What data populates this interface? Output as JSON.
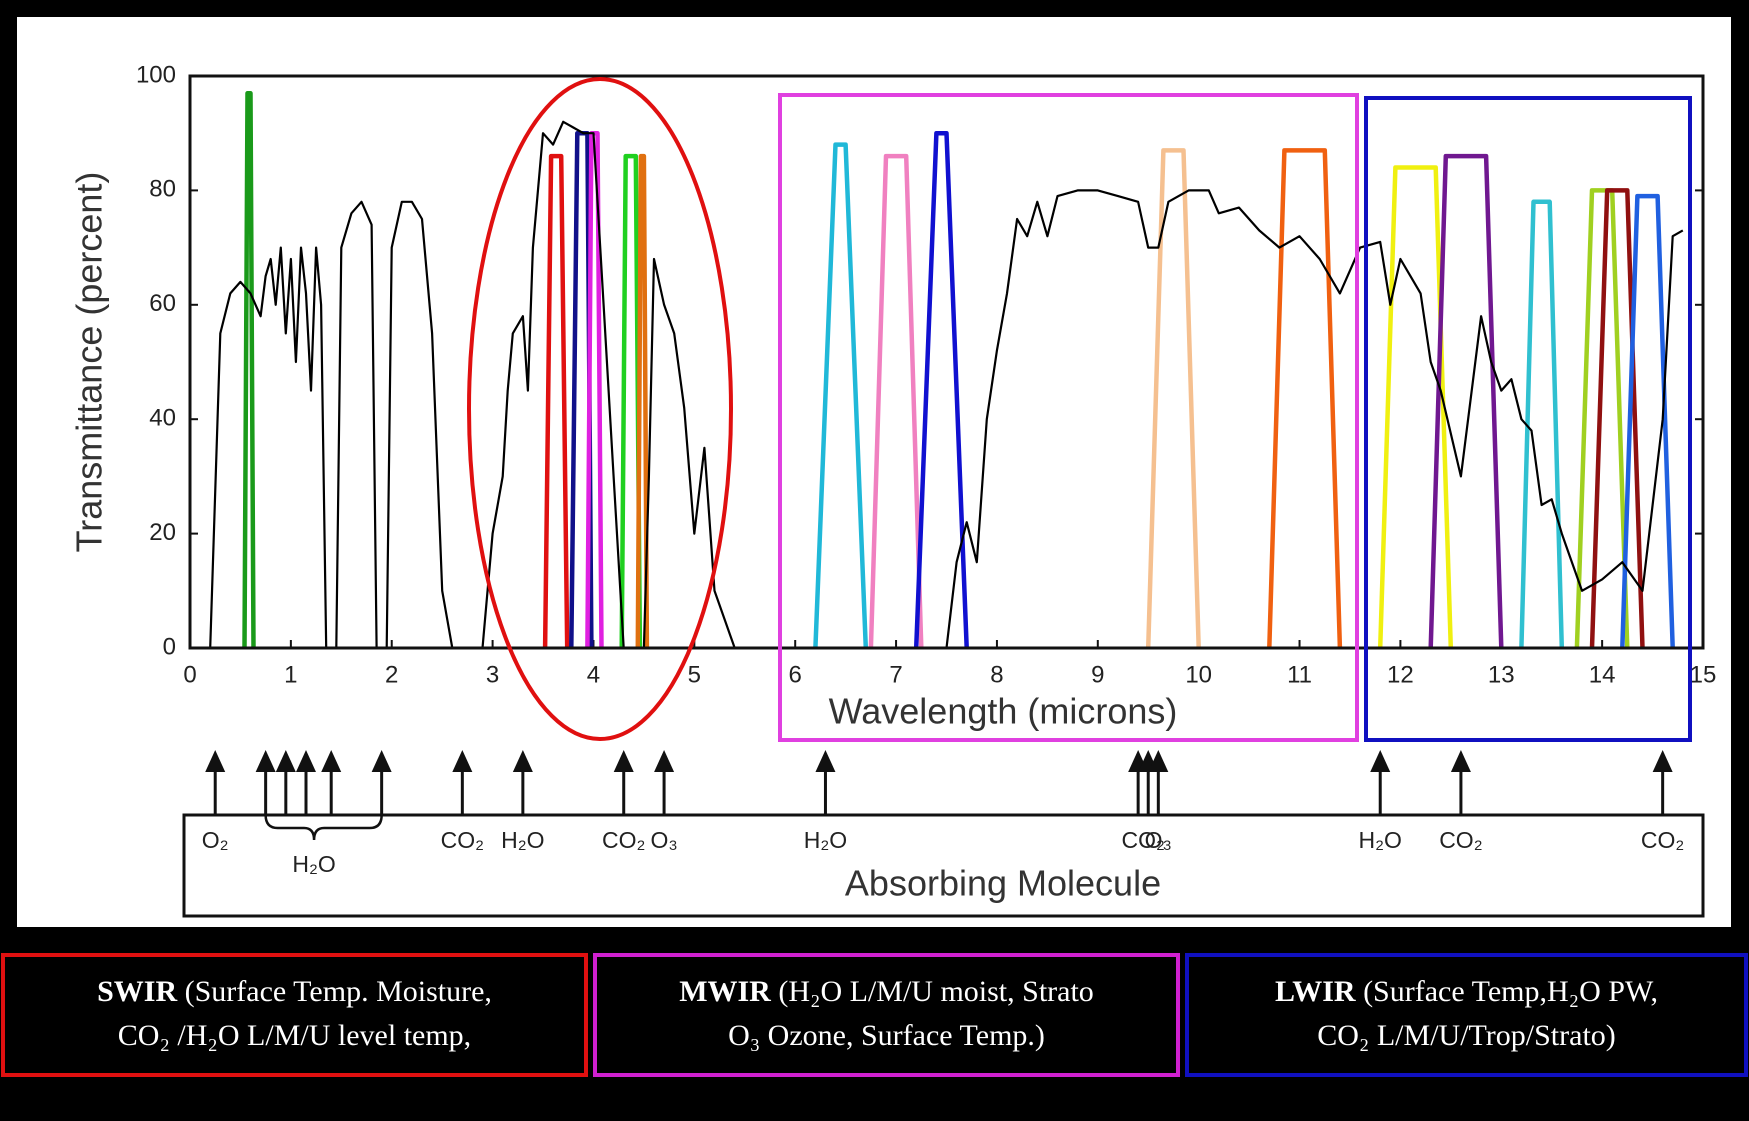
{
  "chart_data": {
    "type": "line",
    "y_label": "Transmittance (percent)",
    "x_label": "Wavelength (microns)",
    "xlim": [
      0,
      15
    ],
    "ylim": [
      0,
      100
    ],
    "xticks": [
      0,
      1,
      2,
      3,
      4,
      5,
      6,
      7,
      8,
      9,
      10,
      11,
      12,
      13,
      14,
      15
    ],
    "yticks": [
      0,
      20,
      40,
      60,
      80,
      100
    ],
    "series": [
      {
        "color": "#000000",
        "x": [
          0.2,
          0.3,
          0.4,
          0.5,
          0.6,
          0.7,
          0.75,
          0.8,
          0.85,
          0.9,
          0.95,
          1.0,
          1.05,
          1.1,
          1.15,
          1.2,
          1.25,
          1.3,
          1.35,
          1.45,
          1.5,
          1.6,
          1.7,
          1.8,
          1.85,
          1.95,
          2.0,
          2.1,
          2.2,
          2.3,
          2.4,
          2.5,
          2.6,
          2.9,
          3.0,
          3.1,
          3.15,
          3.2,
          3.3,
          3.35,
          3.4,
          3.5,
          3.6,
          3.7,
          3.8,
          3.9,
          4.0,
          4.1,
          4.2,
          4.3,
          4.5,
          4.55,
          4.6,
          4.7,
          4.8,
          4.9,
          5.0,
          5.1,
          5.2,
          5.3,
          5.4,
          7.5,
          7.6,
          7.7,
          7.8,
          7.9,
          8.0,
          8.1,
          8.2,
          8.3,
          8.4,
          8.5,
          8.6,
          8.8,
          9.0,
          9.2,
          9.4,
          9.5,
          9.6,
          9.7,
          9.9,
          10.1,
          10.2,
          10.4,
          10.6,
          10.8,
          11.0,
          11.2,
          11.4,
          11.6,
          11.8,
          11.9,
          12.0,
          12.1,
          12.2,
          12.3,
          12.4,
          12.6,
          12.8,
          12.9,
          13.0,
          13.1,
          13.2,
          13.3,
          13.4,
          13.5,
          13.6,
          13.7,
          13.8,
          14.0,
          14.2,
          14.4,
          14.6,
          14.7,
          14.8
        ],
        "values": [
          0,
          55,
          62,
          64,
          62,
          58,
          65,
          68,
          60,
          70,
          55,
          68,
          50,
          70,
          62,
          45,
          70,
          60,
          0,
          0,
          70,
          76,
          78,
          74,
          0,
          0,
          70,
          78,
          78,
          75,
          55,
          10,
          0,
          0,
          20,
          30,
          45,
          55,
          58,
          45,
          70,
          90,
          88,
          92,
          91,
          90,
          90,
          60,
          30,
          0,
          0,
          30,
          68,
          60,
          55,
          42,
          20,
          35,
          10,
          5,
          0,
          0,
          15,
          22,
          15,
          40,
          52,
          62,
          75,
          72,
          78,
          72,
          79,
          80,
          80,
          79,
          78,
          70,
          70,
          78,
          80,
          80,
          76,
          77,
          73,
          70,
          72,
          68,
          62,
          70,
          71,
          60,
          68,
          65,
          62,
          50,
          45,
          30,
          58,
          50,
          45,
          47,
          40,
          38,
          25,
          26,
          20,
          15,
          10,
          12,
          15,
          10,
          40,
          72,
          73
        ]
      },
      {
        "color": "#1a9a1a",
        "x": [
          0.54,
          0.57,
          0.6,
          0.63
        ],
        "values": [
          0,
          97,
          97,
          0
        ]
      },
      {
        "color": "#e01010",
        "x": [
          3.52,
          3.58,
          3.68,
          3.74
        ],
        "values": [
          0,
          86,
          86,
          0
        ]
      },
      {
        "color": "#10108a",
        "x": [
          3.78,
          3.84,
          3.94,
          3.98
        ],
        "values": [
          0,
          90,
          90,
          0
        ]
      },
      {
        "color": "#e020e0",
        "x": [
          3.94,
          3.98,
          4.04,
          4.08
        ],
        "values": [
          0,
          90,
          90,
          0
        ]
      },
      {
        "color": "#20d020",
        "x": [
          4.28,
          4.32,
          4.42,
          4.46
        ],
        "values": [
          0,
          86,
          86,
          0
        ]
      },
      {
        "color": "#e07010",
        "x": [
          4.44,
          4.47,
          4.5,
          4.53
        ],
        "values": [
          0,
          86,
          86,
          0
        ]
      },
      {
        "color": "#20b8d8",
        "x": [
          6.2,
          6.4,
          6.5,
          6.7
        ],
        "values": [
          0,
          88,
          88,
          0
        ]
      },
      {
        "color": "#f080c0",
        "x": [
          6.75,
          6.9,
          7.1,
          7.25
        ],
        "values": [
          0,
          86,
          86,
          0
        ]
      },
      {
        "color": "#1010d0",
        "x": [
          7.2,
          7.4,
          7.5,
          7.7
        ],
        "values": [
          0,
          90,
          90,
          0
        ]
      },
      {
        "color": "#f5c090",
        "x": [
          9.5,
          9.65,
          9.85,
          10.0
        ],
        "values": [
          0,
          87,
          87,
          0
        ]
      },
      {
        "color": "#f06010",
        "x": [
          10.7,
          10.85,
          11.25,
          11.4
        ],
        "values": [
          0,
          87,
          87,
          0
        ]
      },
      {
        "color": "#f0f010",
        "x": [
          11.8,
          11.95,
          12.35,
          12.5
        ],
        "values": [
          0,
          84,
          84,
          0
        ]
      },
      {
        "color": "#701890",
        "x": [
          12.3,
          12.45,
          12.85,
          13.0
        ],
        "values": [
          0,
          86,
          86,
          0
        ]
      },
      {
        "color": "#30c0d0",
        "x": [
          13.2,
          13.32,
          13.48,
          13.6
        ],
        "values": [
          0,
          78,
          78,
          0
        ]
      },
      {
        "color": "#a0d020",
        "x": [
          13.75,
          13.9,
          14.1,
          14.25
        ],
        "values": [
          0,
          80,
          80,
          0
        ]
      },
      {
        "color": "#901010",
        "x": [
          13.9,
          14.05,
          14.25,
          14.4
        ],
        "values": [
          0,
          80,
          80,
          0
        ]
      },
      {
        "color": "#2060e0",
        "x": [
          14.2,
          14.35,
          14.55,
          14.7
        ],
        "values": [
          0,
          79,
          79,
          0
        ]
      }
    ],
    "annotation_label": "Absorbing Molecule",
    "molecules": [
      {
        "label": "O₂",
        "x": [
          0.25
        ]
      },
      {
        "label": "H₂O",
        "x": [
          0.75,
          0.95,
          1.15,
          1.4,
          1.9
        ]
      },
      {
        "label": "CO₂",
        "x": [
          2.7
        ]
      },
      {
        "label": "H₂O",
        "x": [
          3.3
        ]
      },
      {
        "label": "CO₂",
        "x": [
          4.3
        ]
      },
      {
        "label": "O₃",
        "x": [
          4.7
        ]
      },
      {
        "label": "H₂O",
        "x": [
          6.3
        ]
      },
      {
        "label": "CO₂",
        "x": [
          9.4,
          9.5
        ]
      },
      {
        "label": "O₃",
        "x": [
          9.6
        ]
      },
      {
        "label": "H₂O",
        "x": [
          11.8
        ]
      },
      {
        "label": "CO₂",
        "x": [
          12.6
        ]
      },
      {
        "label": "CO₂",
        "x": [
          14.6
        ]
      }
    ]
  },
  "bands": [
    {
      "name": "SWIR",
      "line1": "(Surface Temp.  Moisture,",
      "line2": "CO₂ /H₂O L/M/U level temp,",
      "color": "#e01010"
    },
    {
      "name": "MWIR",
      "line1": "(H₂O L/M/U moist, Strato",
      "line2": "O₃ Ozone, Surface Temp.)",
      "color": "#d020d0"
    },
    {
      "name": "LWIR",
      "line1": "(Surface Temp,H₂O PW,",
      "line2": "CO₂ L/M/U/Trop/Strato)",
      "color": "#1010c0"
    }
  ]
}
